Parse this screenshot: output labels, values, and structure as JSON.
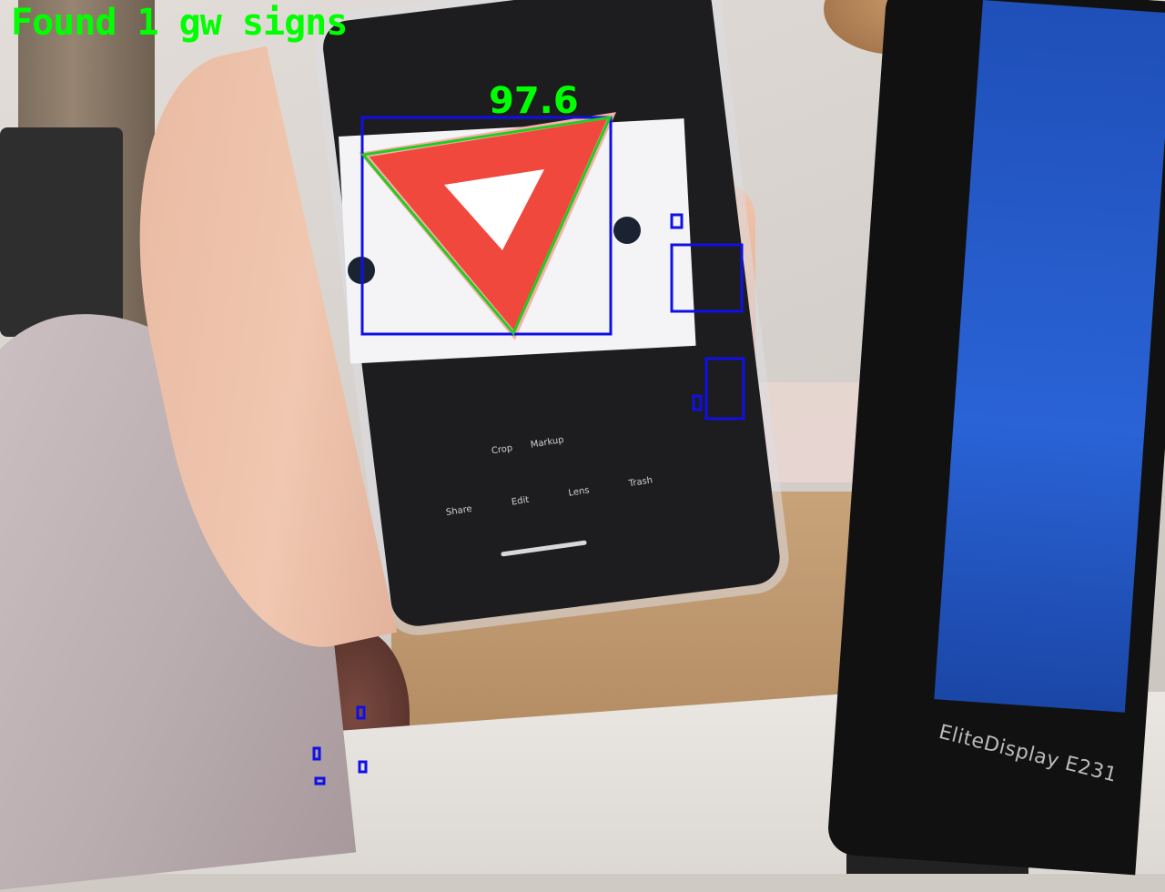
{
  "overlay": {
    "header_text": "Found 1 gw signs",
    "score_label": "97.6",
    "colors": {
      "text": "#00ff00",
      "box": "#1010e6",
      "triangle_outline": "#22cc22",
      "sign_red": "#f0483c",
      "sign_white": "#ffffff"
    }
  },
  "scene": {
    "monitor_label": "EliteDisplay E231",
    "phone_ui": {
      "actions": [
        "Share",
        "Edit",
        "Lens",
        "Trash"
      ],
      "toolbar": [
        "Crop",
        "Markup"
      ]
    }
  }
}
